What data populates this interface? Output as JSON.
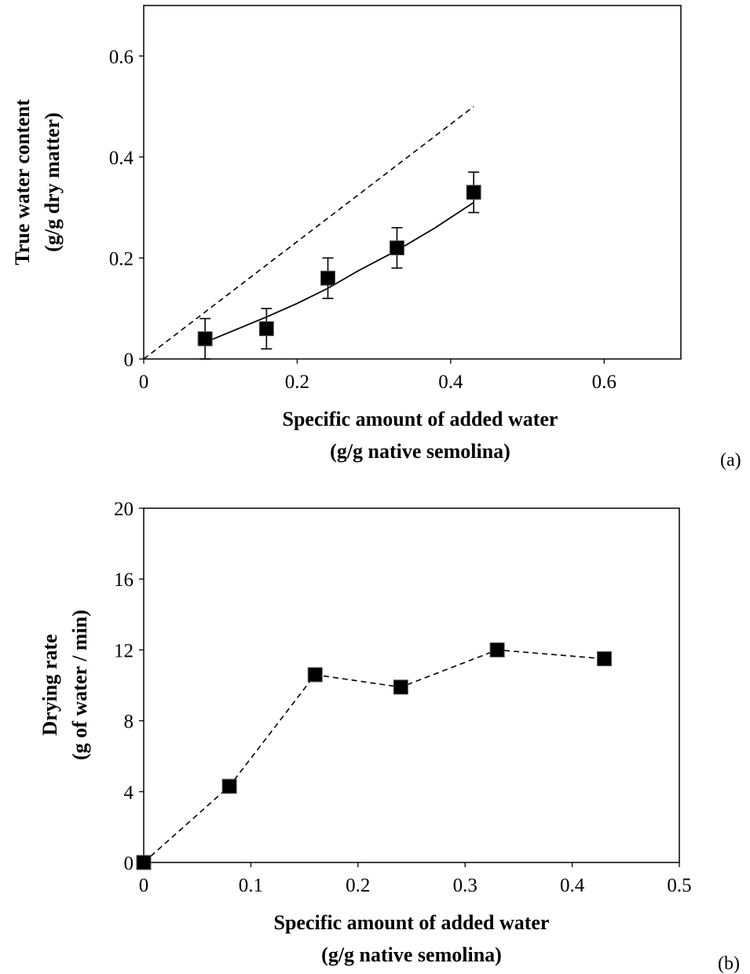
{
  "chart_data": [
    {
      "type": "scatter",
      "panel_label": "(a)",
      "xlabel": [
        "Specific amount of added water",
        "(g/g native semolina)"
      ],
      "ylabel": [
        "True water content",
        "(g/g dry matter)"
      ],
      "xlim": [
        0,
        0.7
      ],
      "ylim": [
        0,
        0.7
      ],
      "xticks": [
        0,
        0.2,
        0.4,
        0.6
      ],
      "xtick_labels": [
        "0",
        "0.2",
        "0.4",
        "0.6"
      ],
      "yticks": [
        0,
        0.2,
        0.4,
        0.6
      ],
      "ytick_labels": [
        "0",
        "0.2",
        "0.4",
        "0.6"
      ],
      "grid": false,
      "series": [
        {
          "kind": "markers-with-error-bars",
          "x": [
            0.08,
            0.16,
            0.24,
            0.33,
            0.43
          ],
          "y": [
            0.04,
            0.06,
            0.16,
            0.22,
            0.33
          ],
          "error": [
            0.04,
            0.04,
            0.04,
            0.04,
            0.04
          ]
        },
        {
          "kind": "solid-fit-line",
          "x": [
            0.08,
            0.12,
            0.16,
            0.2,
            0.24,
            0.28,
            0.33,
            0.38,
            0.43
          ],
          "y": [
            0.033,
            0.058,
            0.083,
            0.11,
            0.14,
            0.175,
            0.215,
            0.26,
            0.31
          ]
        },
        {
          "kind": "dashed-reference-line",
          "x": [
            0,
            0.43
          ],
          "y": [
            0,
            0.5
          ]
        }
      ]
    },
    {
      "type": "line",
      "panel_label": "(b)",
      "xlabel": [
        "Specific amount of added water",
        "(g/g native semolina)"
      ],
      "ylabel": [
        "Drying rate",
        "(g of water / min)"
      ],
      "xlim": [
        0,
        0.5
      ],
      "ylim": [
        0,
        20
      ],
      "xticks": [
        0,
        0.1,
        0.2,
        0.3,
        0.4,
        0.5
      ],
      "xtick_labels": [
        "0",
        "0.1",
        "0.2",
        "0.3",
        "0.4",
        "0.5"
      ],
      "yticks": [
        0,
        4,
        8,
        12,
        16,
        20
      ],
      "ytick_labels": [
        "0",
        "4",
        "8",
        "12",
        "16",
        "20"
      ],
      "grid": false,
      "series": [
        {
          "kind": "dashed-line-with-markers",
          "x": [
            0,
            0.08,
            0.16,
            0.24,
            0.33,
            0.43
          ],
          "y": [
            0,
            4.3,
            10.6,
            9.9,
            12.0,
            11.5
          ]
        }
      ]
    }
  ]
}
